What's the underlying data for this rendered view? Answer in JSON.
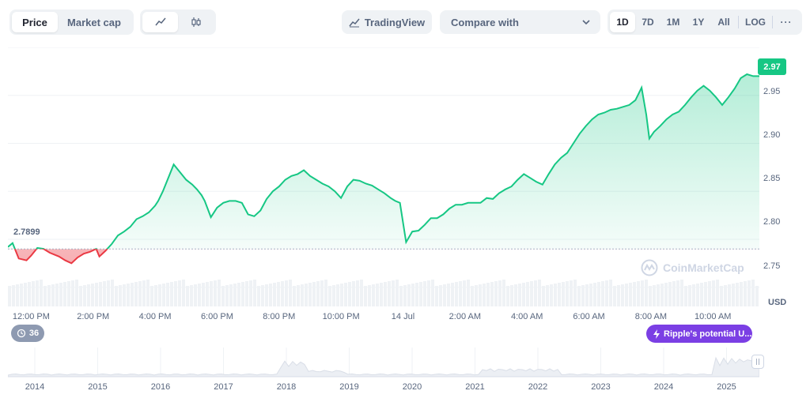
{
  "toolbar": {
    "price_tab": "Price",
    "market_cap_tab": "Market cap",
    "tradingview_label": "TradingView",
    "compare_label": "Compare with",
    "ranges": [
      "1D",
      "7D",
      "1M",
      "1Y",
      "All"
    ],
    "log_label": "LOG",
    "more_label": "···"
  },
  "chart": {
    "current_price": "2.97",
    "open_price": "2.7899",
    "currency_label": "USD",
    "watermark": "CoinMarketCap",
    "news_count": "36",
    "news_pill": "Ripple's potential U..."
  },
  "colors": {
    "up": "#16c784",
    "down": "#ea3943",
    "accent_purple": "#7b3fe4"
  },
  "chart_data": {
    "type": "line",
    "ylim": [
      2.73,
      3.0
    ],
    "ylabel": "USD",
    "baseline": 2.7899,
    "y_ticks": [
      "2.95",
      "2.90",
      "2.85",
      "2.80",
      "2.75"
    ],
    "x_ticks": [
      "12:00 PM",
      "2:00 PM",
      "4:00 PM",
      "6:00 PM",
      "8:00 PM",
      "10:00 PM",
      "14 Jul",
      "2:00 AM",
      "4:00 AM",
      "6:00 AM",
      "8:00 AM",
      "10:00 AM"
    ],
    "x_hours": [
      12,
      14,
      16,
      18,
      20,
      22,
      24,
      26,
      28,
      30,
      32,
      34
    ],
    "series": [
      {
        "x": [
          11.25,
          11.4,
          11.6,
          11.85,
          12.0,
          12.2,
          12.4,
          12.6,
          12.9,
          13.1,
          13.3,
          13.5,
          13.7,
          13.9,
          14.1,
          14.2,
          14.4,
          14.6,
          14.8,
          15.0,
          15.2,
          15.4,
          15.6,
          15.8,
          16.0,
          16.1,
          16.25,
          16.4,
          16.6,
          16.8,
          17.0,
          17.2,
          17.35,
          17.5,
          17.6,
          17.8,
          18.0,
          18.2,
          18.4,
          18.6,
          18.8,
          19.0,
          19.2,
          19.4,
          19.6,
          19.8,
          20.0,
          20.2,
          20.4,
          20.6,
          20.8,
          21.0,
          21.2,
          21.4,
          21.6,
          21.8,
          22.0,
          22.2,
          22.4,
          22.6,
          22.8,
          23.0,
          23.2,
          23.4,
          23.6,
          23.75,
          23.9,
          24.1,
          24.3,
          24.5,
          24.7,
          24.9,
          25.1,
          25.3,
          25.5,
          25.7,
          25.9,
          26.1,
          26.3,
          26.5,
          26.7,
          26.9,
          27.1,
          27.3,
          27.5,
          27.7,
          27.9,
          28.1,
          28.3,
          28.5,
          28.7,
          28.9,
          29.1,
          29.3,
          29.5,
          29.7,
          29.9,
          30.1,
          30.3,
          30.5,
          30.7,
          30.9,
          31.1,
          31.3,
          31.5,
          31.7,
          31.85,
          31.95,
          32.1,
          32.3,
          32.5,
          32.7,
          32.9,
          33.1,
          33.3,
          33.5,
          33.7,
          33.9,
          34.1,
          34.3,
          34.5,
          34.7,
          34.9,
          35.1,
          35.3,
          35.5
        ],
        "y": [
          2.792,
          2.796,
          2.78,
          2.778,
          2.783,
          2.791,
          2.79,
          2.786,
          2.782,
          2.778,
          2.775,
          2.781,
          2.785,
          2.787,
          2.79,
          2.782,
          2.788,
          2.795,
          2.804,
          2.808,
          2.813,
          2.821,
          2.824,
          2.828,
          2.835,
          2.84,
          2.85,
          2.862,
          2.878,
          2.87,
          2.862,
          2.857,
          2.852,
          2.846,
          2.84,
          2.823,
          2.833,
          2.838,
          2.84,
          2.84,
          2.838,
          2.826,
          2.824,
          2.83,
          2.842,
          2.85,
          2.855,
          2.862,
          2.866,
          2.868,
          2.872,
          2.866,
          2.862,
          2.858,
          2.855,
          2.85,
          2.843,
          2.855,
          2.862,
          2.861,
          2.858,
          2.856,
          2.852,
          2.848,
          2.843,
          2.84,
          2.838,
          2.797,
          2.808,
          2.809,
          2.815,
          2.822,
          2.822,
          2.826,
          2.832,
          2.836,
          2.836,
          2.838,
          2.838,
          2.838,
          2.843,
          2.842,
          2.848,
          2.852,
          2.855,
          2.862,
          2.868,
          2.864,
          2.86,
          2.857,
          2.868,
          2.878,
          2.885,
          2.89,
          2.9,
          2.91,
          2.918,
          2.925,
          2.93,
          2.932,
          2.935,
          2.936,
          2.938,
          2.94,
          2.945,
          2.958,
          2.93,
          2.905,
          2.912,
          2.918,
          2.925,
          2.93,
          2.933,
          2.94,
          2.948,
          2.955,
          2.96,
          2.955,
          2.948,
          2.94,
          2.948,
          2.957,
          2.968,
          2.972,
          2.97,
          2.97
        ]
      }
    ]
  },
  "overview": {
    "year_labels": [
      "2014",
      "2015",
      "2016",
      "2017",
      "2018",
      "2019",
      "2020",
      "2021",
      "2022",
      "2023",
      "2024",
      "2025"
    ]
  }
}
